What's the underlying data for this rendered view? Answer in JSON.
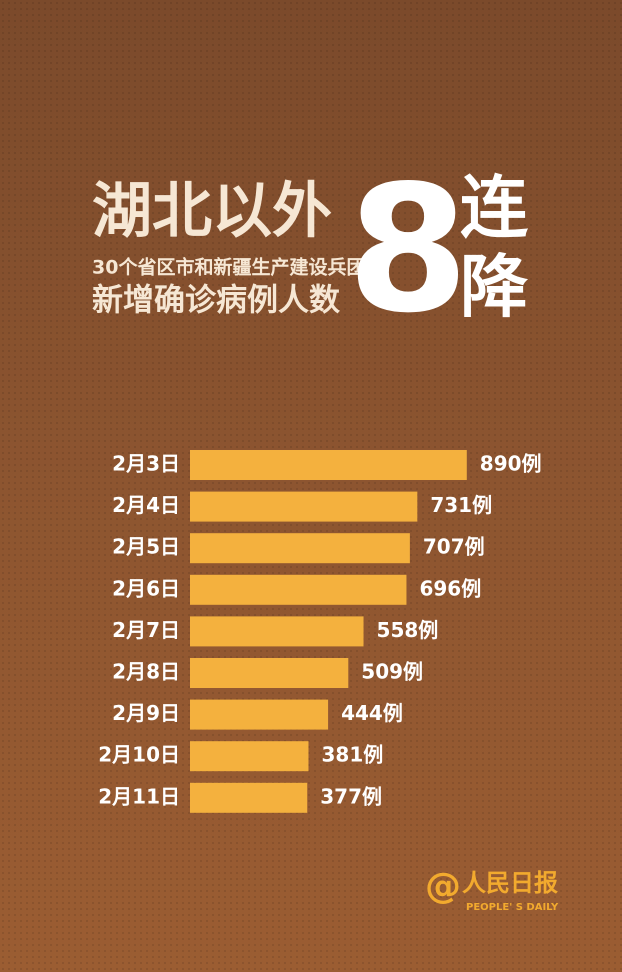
{
  "header": {
    "title": "湖北以外",
    "subtitle": "30个省区市和新疆生产建设兵团",
    "caption": "新增确诊病例人数",
    "big_number": 8,
    "trend": [
      "连",
      "降"
    ]
  },
  "chart_data": {
    "type": "bar",
    "orientation": "horizontal",
    "categories": [
      "2月3日",
      "2月4日",
      "2月5日",
      "2月6日",
      "2月7日",
      "2月8日",
      "2月9日",
      "2月10日",
      "2月11日"
    ],
    "values": [
      890,
      731,
      707,
      696,
      558,
      509,
      444,
      381,
      377
    ],
    "value_labels": [
      "890例",
      "731例",
      "707例",
      "696例",
      "558例",
      "509例",
      "444例",
      "381例",
      "377例"
    ],
    "color": "#f4b13e"
  },
  "logo": {
    "symbol": "@",
    "name": "人民日报",
    "english": "PEOPLE' S DAILY"
  }
}
